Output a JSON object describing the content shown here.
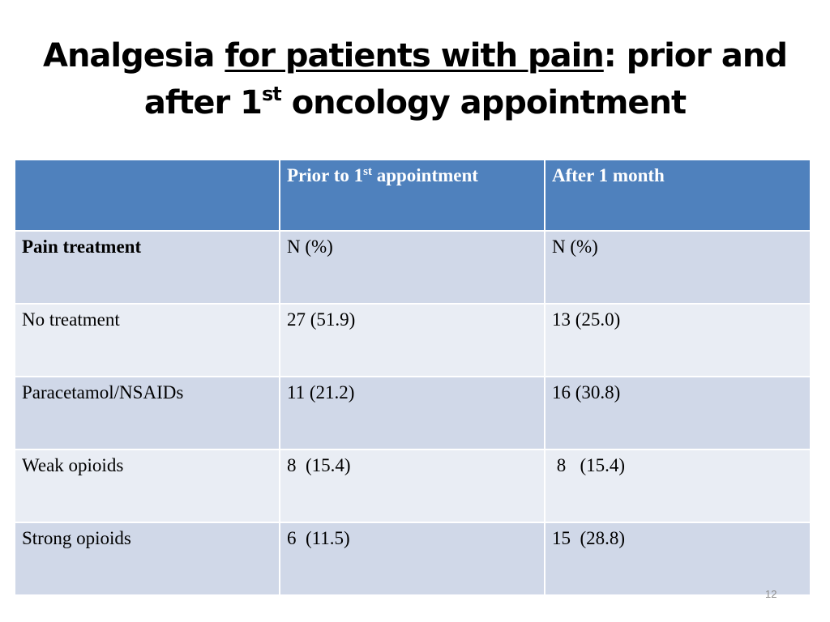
{
  "title": {
    "part1": "Analgesia ",
    "part2_underlined": "for patients with pain",
    "part3": ": prior and",
    "line2_start": "after 1",
    "line2_sup": "st",
    "line2_end": " oncology appointment"
  },
  "table": {
    "header": {
      "col1": "",
      "col2_start": "Prior to 1",
      "col2_sup": "st",
      "col2_end": " appointment",
      "col3": "After 1 month"
    },
    "rows": [
      {
        "label": "Pain treatment",
        "prior": "N (%)",
        "after": "N (%)"
      },
      {
        "label": "No treatment",
        "prior": "27 (51.9)",
        "after": "13 (25.0)"
      },
      {
        "label": "Paracetamol/NSAIDs",
        "prior": "11 (21.2)",
        "after": "16 (30.8)"
      },
      {
        "label": "Weak opioids",
        "prior": "8  (15.4)",
        "after": " 8   (15.4)"
      },
      {
        "label": "Strong opioids",
        "prior": "6  (11.5)",
        "after": "15  (28.8)"
      }
    ]
  },
  "slide_number": "12",
  "colors": {
    "header_bg": "#4f81bd",
    "band_dark": "#d0d8e8",
    "band_light": "#e9edf4"
  }
}
